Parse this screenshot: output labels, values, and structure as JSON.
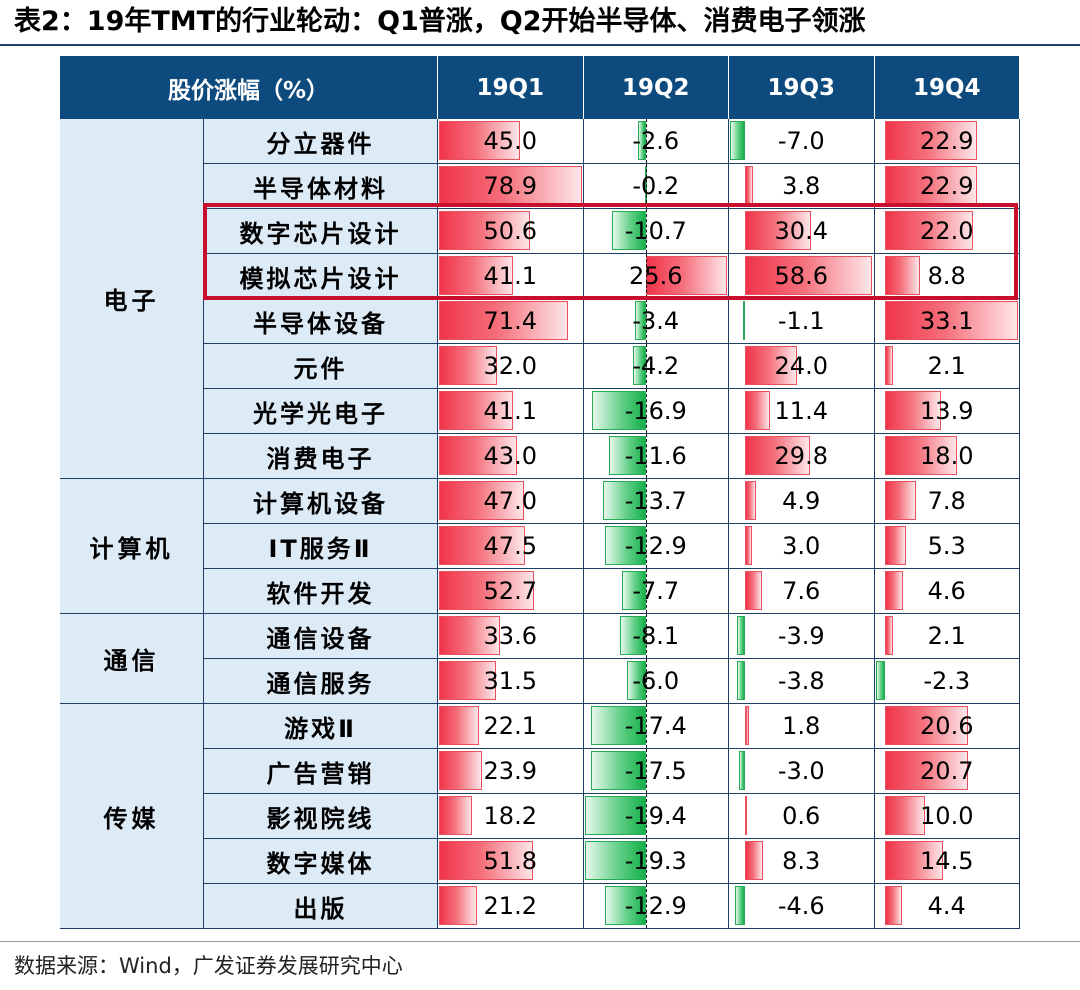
{
  "title": "表2：19年TMT的行业轮动：Q1普涨，Q2开始半导体、消费电子领涨",
  "source": "数据来源：Wind，广发证券发展研究中心",
  "colors": {
    "header_bg": "#0d4a7d",
    "label_bg": "#ddebf7",
    "positive_bar": "#f0344a",
    "negative_bar": "#16b04b",
    "highlight_border": "#c8102e"
  },
  "chart_data": {
    "type": "table",
    "header": "股价涨幅（%）",
    "columns": [
      "19Q1",
      "19Q2",
      "19Q3",
      "19Q4"
    ],
    "groups": [
      {
        "name": "电子",
        "rows": [
          {
            "label": "分立器件",
            "values": [
              45.0,
              -2.6,
              -7.0,
              22.9
            ]
          },
          {
            "label": "半导体材料",
            "values": [
              78.9,
              -0.2,
              3.8,
              22.9
            ]
          },
          {
            "label": "数字芯片设计",
            "values": [
              50.6,
              -10.7,
              30.4,
              22.0
            ]
          },
          {
            "label": "模拟芯片设计",
            "values": [
              41.1,
              25.6,
              58.6,
              8.8
            ]
          },
          {
            "label": "半导体设备",
            "values": [
              71.4,
              -3.4,
              -1.1,
              33.1
            ]
          },
          {
            "label": "元件",
            "values": [
              32.0,
              -4.2,
              24.0,
              2.1
            ]
          },
          {
            "label": "光学光电子",
            "values": [
              41.1,
              -16.9,
              11.4,
              13.9
            ]
          },
          {
            "label": "消费电子",
            "values": [
              43.0,
              -11.6,
              29.8,
              18.0
            ]
          }
        ]
      },
      {
        "name": "计算机",
        "rows": [
          {
            "label": "计算机设备",
            "values": [
              47.0,
              -13.7,
              4.9,
              7.8
            ]
          },
          {
            "label": "IT服务Ⅱ",
            "values": [
              47.5,
              -12.9,
              3.0,
              5.3
            ]
          },
          {
            "label": "软件开发",
            "values": [
              52.7,
              -7.7,
              7.6,
              4.6
            ]
          }
        ]
      },
      {
        "name": "通信",
        "rows": [
          {
            "label": "通信设备",
            "values": [
              33.6,
              -8.1,
              -3.9,
              2.1
            ]
          },
          {
            "label": "通信服务",
            "values": [
              31.5,
              -6.0,
              -3.8,
              -2.3
            ]
          }
        ]
      },
      {
        "name": "传媒",
        "rows": [
          {
            "label": "游戏Ⅱ",
            "values": [
              22.1,
              -17.4,
              1.8,
              20.6
            ]
          },
          {
            "label": "广告营销",
            "values": [
              23.9,
              -17.5,
              -3.0,
              20.7
            ]
          },
          {
            "label": "影视院线",
            "values": [
              18.2,
              -19.4,
              0.6,
              10.0
            ]
          },
          {
            "label": "数字媒体",
            "values": [
              51.8,
              -19.3,
              8.3,
              14.5
            ]
          },
          {
            "label": "出版",
            "values": [
              21.2,
              -12.9,
              -4.6,
              4.4
            ]
          }
        ]
      }
    ],
    "highlighted_rows": [
      "数字芯片设计",
      "模拟芯片设计"
    ]
  }
}
